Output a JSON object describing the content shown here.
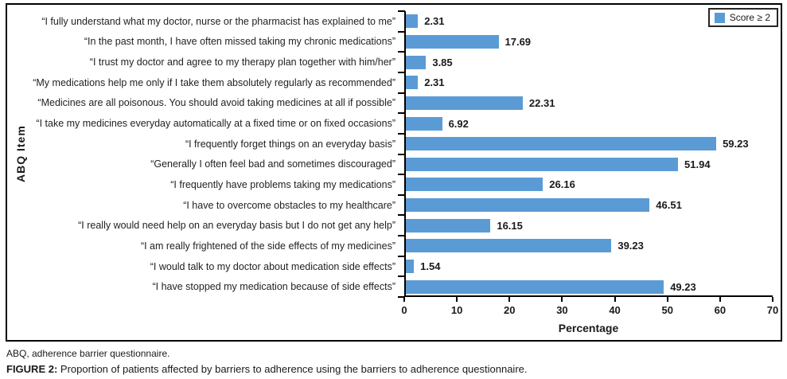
{
  "chart_data": {
    "type": "bar",
    "orientation": "horizontal",
    "xlabel": "Percentage",
    "ylabel": "ABQ Item",
    "xlim": [
      0,
      70
    ],
    "x_ticks": [
      0,
      10,
      20,
      30,
      40,
      50,
      60,
      70
    ],
    "grid": false,
    "bar_color": "#5B9BD5",
    "legend": {
      "label": "Score ≥ 2",
      "position": "top-right"
    },
    "categories": [
      "“I fully understand what my doctor, nurse or the pharmacist has explained to me”",
      "“In the past month, I have often missed taking my chronic medications”",
      "“I trust my doctor and agree to my therapy plan together with him/her”",
      "“My medications help me only if I take them absolutely regularly as recommended”",
      "“Medicines are all poisonous. You should avoid taking medicines at all if possible”",
      "“I take my medicines everyday automatically at a fixed time or on fixed occasions”",
      "“I frequently forget things on an everyday basis”",
      "“Generally I often feel bad and sometimes discouraged”",
      "“I frequently have problems taking my medications”",
      "“I have to overcome obstacles to my healthcare”",
      "“I really would need help on an everyday basis but I do not get any help”",
      "“I am really frightened of the side effects of my medicines”",
      "“I would talk to my doctor about medication side effects”",
      "“I have stopped my medication because of side effects”"
    ],
    "values": [
      2.31,
      17.69,
      3.85,
      2.31,
      22.31,
      6.92,
      59.23,
      51.94,
      26.16,
      46.51,
      16.15,
      39.23,
      1.54,
      49.23
    ],
    "value_labels": [
      "2.31",
      "17.69",
      "3.85",
      "2.31",
      "22.31",
      "6.92",
      "59.23",
      "51.94",
      "26.16",
      "46.51",
      "16.15",
      "39.23",
      "1.54",
      "49.23"
    ]
  },
  "captions": {
    "abbreviation_note": "ABQ, adherence barrier questionnaire.",
    "figure_label": "FIGURE 2:",
    "figure_text": "Proportion of patients affected by barriers to adherence using the barriers to adherence questionnaire."
  },
  "colors": {
    "bar": "#5B9BD5",
    "axis": "#000000",
    "text": "#1a1a1a"
  }
}
